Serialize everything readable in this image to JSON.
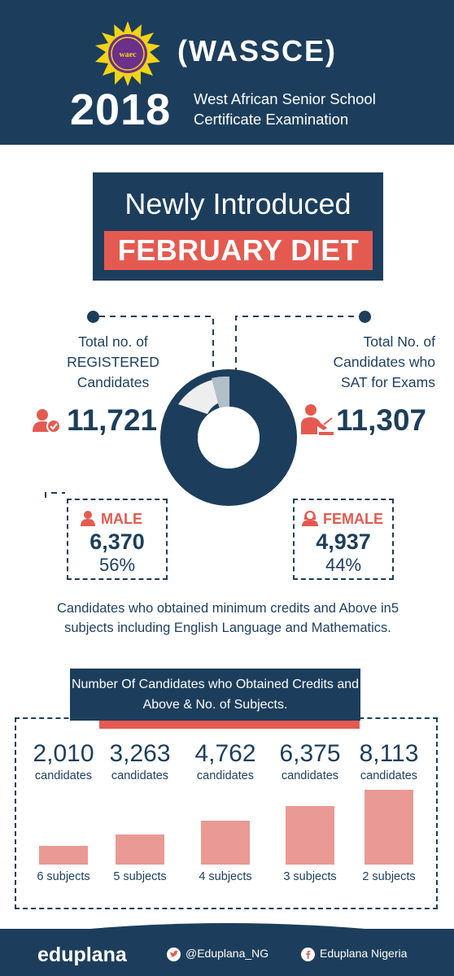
{
  "header": {
    "logo_text": "waec",
    "acronym": "(WASSCE)",
    "year": "2018",
    "exam_name": "West African Senior School Certificate Examination"
  },
  "diet": {
    "title": "Newly Introduced",
    "highlight": "FEBRUARY DIET"
  },
  "registered": {
    "label": "Total no. of REGISTERED Candidates",
    "value": "11,721"
  },
  "sat": {
    "label": "Total No. of Candidates who SAT for Exams",
    "value": "11,307"
  },
  "male": {
    "label": "MALE",
    "count": "6,370",
    "percent": "56%"
  },
  "female": {
    "label": "FEMALE",
    "count": "4,937",
    "percent": "44%"
  },
  "min_credits_text": "Candidates who obtained minimum credits and Above in5 subjects including English Language and Mathematics.",
  "credits_heading": "Number Of Candidates who Obtained Credits and Above & No. of Subjects.",
  "chart_data": {
    "type": "bar",
    "categories": [
      "6 subjects",
      "5 subjects",
      "4 subjects",
      "3 subjects",
      "2 subjects"
    ],
    "values": [
      2010,
      3263,
      4762,
      6375,
      8113
    ],
    "value_labels": [
      "2,010",
      "3,263",
      "4,762",
      "6,375",
      "8,113"
    ],
    "unit_label": "candidates",
    "color": "#e99a94"
  },
  "footer": {
    "brand": "eduplana",
    "twitter": "@Eduplana_NG",
    "facebook": "Eduplana Nigeria"
  },
  "colors": {
    "navy": "#1c3e5c",
    "red": "#e55a50",
    "bar": "#e99a94",
    "light_grey": "#eeeeee",
    "grey_blue": "#b1bfc9"
  }
}
